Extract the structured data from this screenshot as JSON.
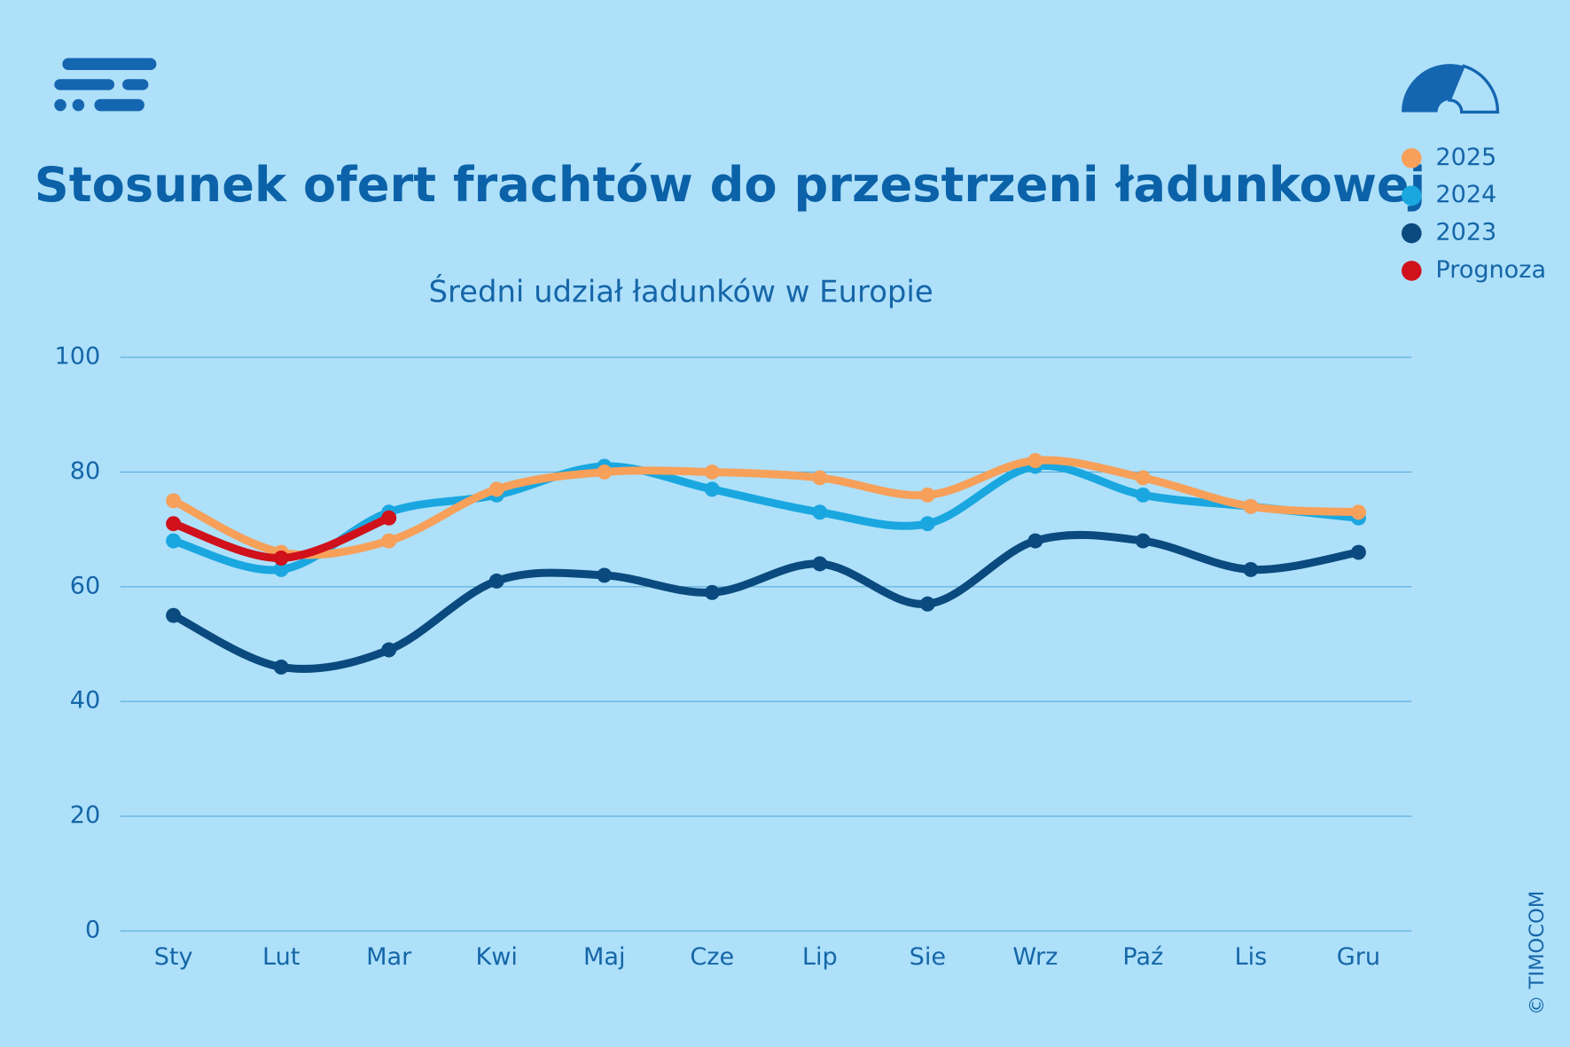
{
  "chart_data": {
    "type": "line",
    "title": "Stosunek ofert frachtów do przestrzeni ładunkowej",
    "subtitle": "Średni udział ładunków w Europie",
    "copyright": "© TIMOCOM",
    "categories": [
      "Sty",
      "Lut",
      "Mar",
      "Kwi",
      "Maj",
      "Cze",
      "Lip",
      "Sie",
      "Wrz",
      "Paź",
      "Lis",
      "Gru"
    ],
    "series": [
      {
        "name": "2025",
        "color": "#f7a05a",
        "values": [
          75,
          66,
          68,
          77,
          80,
          80,
          79,
          76,
          82,
          79,
          74,
          73
        ]
      },
      {
        "name": "2024",
        "color": "#1aa7e0",
        "values": [
          68,
          63,
          73,
          76,
          81,
          77,
          73,
          71,
          81,
          76,
          74,
          72
        ]
      },
      {
        "name": "2023",
        "color": "#0b4a7e",
        "values": [
          55,
          46,
          49,
          61,
          62,
          59,
          64,
          57,
          68,
          68,
          63,
          66
        ]
      },
      {
        "name": "Prognoza",
        "color": "#d0101a",
        "values": [
          71,
          65,
          72,
          null,
          null,
          null,
          null,
          null,
          null,
          null,
          null,
          null
        ]
      }
    ],
    "ylim": [
      0,
      100
    ],
    "yticks": [
      0,
      20,
      40,
      60,
      80,
      100
    ],
    "grid": true,
    "legend": "top-right"
  }
}
